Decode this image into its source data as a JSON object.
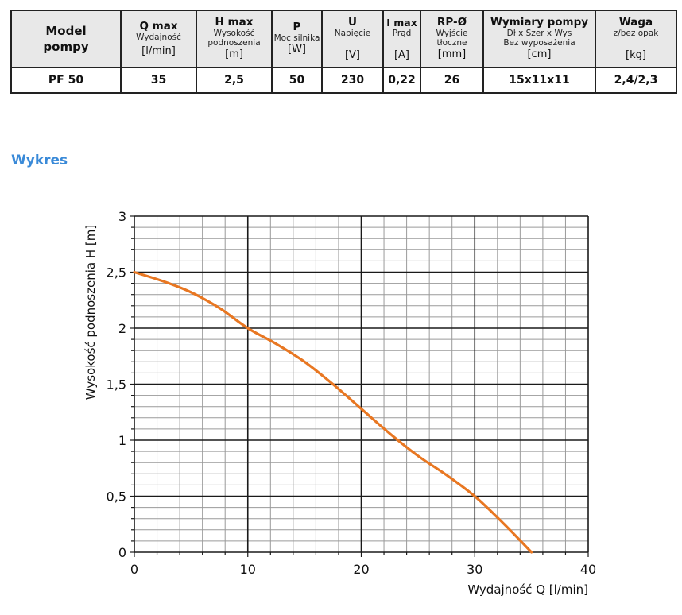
{
  "table": {
    "headers": [
      {
        "name": "Model\npompy",
        "desc": "",
        "unit": ""
      },
      {
        "name": "Q max",
        "desc": "Wydajność",
        "unit": "[l/min]"
      },
      {
        "name": "H max",
        "desc": "Wysokość podnoszenia",
        "unit": "[m]"
      },
      {
        "name": "P",
        "desc": "Moc silnika",
        "unit": "[W]"
      },
      {
        "name": "U",
        "desc": "Napięcie",
        "unit": "[V]"
      },
      {
        "name": "I max",
        "desc": "Prąd",
        "unit": "[A]"
      },
      {
        "name": "RP-Ø",
        "desc": "Wyjście tłoczne",
        "unit": "[mm]"
      },
      {
        "name": "Wymiary pompy",
        "desc": "Dł x Szer x Wys\nBez wyposażenia",
        "unit": "[cm]"
      },
      {
        "name": "Waga",
        "desc": "z/bez opak",
        "unit": "[kg]"
      }
    ],
    "row": [
      "PF 50",
      "35",
      "2,5",
      "50",
      "230",
      "0,22",
      "26",
      "15x11x11",
      "2,4/2,3"
    ]
  },
  "section_title": "Wykres",
  "chart_data": {
    "type": "line",
    "title": "",
    "xlabel": "Wydajność Q [l/min]",
    "ylabel": "Wysokość podnoszenia H [m]",
    "xlim": [
      0,
      40
    ],
    "ylim": [
      0,
      3
    ],
    "x_ticks": [
      "0",
      "10",
      "20",
      "30",
      "40"
    ],
    "y_ticks": [
      "0",
      "0,5",
      "1",
      "1,5",
      "2",
      "2,5",
      "3"
    ],
    "grid": true,
    "series": [
      {
        "color": "#e87722",
        "x": [
          0,
          2.5,
          5,
          7.5,
          10,
          12.5,
          15,
          17.5,
          20,
          22.5,
          25,
          27.5,
          30,
          32.5,
          35
        ],
        "values": [
          2.5,
          2.42,
          2.32,
          2.18,
          2.0,
          1.86,
          1.7,
          1.5,
          1.28,
          1.06,
          0.86,
          0.69,
          0.5,
          0.26,
          0.0
        ]
      }
    ]
  }
}
